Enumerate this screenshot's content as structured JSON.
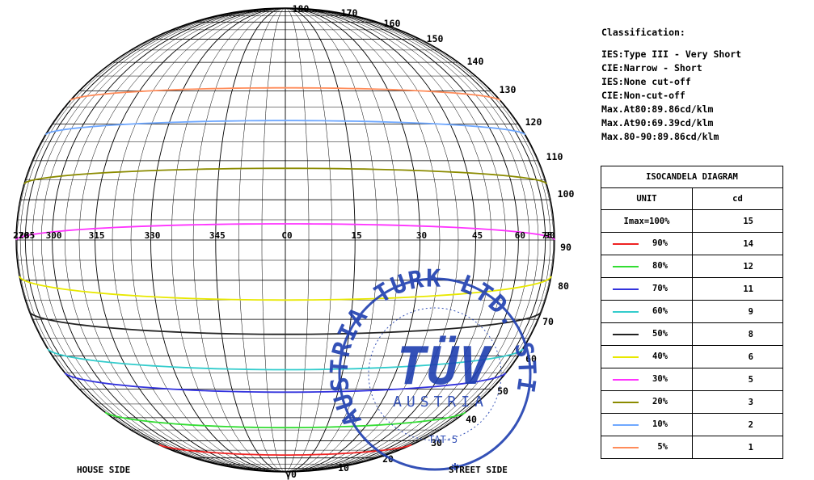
{
  "chart_data": {
    "type": "isocandela",
    "azimuth_labels": [
      "270",
      "285",
      "300",
      "315",
      "330",
      "345",
      "C0",
      "15",
      "30",
      "45",
      "60",
      "75",
      "90"
    ],
    "polar_labels": [
      "180",
      "170",
      "160",
      "150",
      "140",
      "130",
      "120",
      "110",
      "100",
      "90",
      "80",
      "70",
      "60",
      "50",
      "40",
      "30",
      "20",
      "10",
      "γ0"
    ],
    "contours": [
      {
        "percent": 5,
        "cd": 1,
        "color": "#ff8c5a"
      },
      {
        "percent": 10,
        "cd": 2,
        "color": "#6fa8ff"
      },
      {
        "percent": 20,
        "cd": 3,
        "color": "#8b8b00"
      },
      {
        "percent": 30,
        "cd": 5,
        "color": "#ff33ff"
      },
      {
        "percent": 40,
        "cd": 6,
        "color": "#e8e800"
      },
      {
        "percent": 50,
        "cd": 8,
        "color": "#222222"
      },
      {
        "percent": 60,
        "cd": 9,
        "color": "#33cccc"
      },
      {
        "percent": 70,
        "cd": 11,
        "color": "#3333dd"
      },
      {
        "percent": 80,
        "cd": 12,
        "color": "#33dd33"
      },
      {
        "percent": 90,
        "cd": 14,
        "color": "#ee2222"
      }
    ],
    "house_side_label": "HOUSE SIDE",
    "street_side_label": "STREET SIDE"
  },
  "classification": {
    "title": "Classification:",
    "lines": [
      "IES:Type III - Very Short",
      "CIE:Narrow - Short",
      "IES:None cut-off",
      "CIE:Non-cut-off",
      "Max.At80:89.86cd/klm",
      "Max.At90:69.39cd/klm",
      "Max.80-90:89.86cd/klm"
    ]
  },
  "table": {
    "title": "ISOCANDELA DIAGRAM",
    "unit_label": "UNIT",
    "unit_value": "cd",
    "imax_label": "Imax=100%",
    "imax_value": "15",
    "rows": [
      {
        "pct": "90%",
        "cd": "14",
        "color": "#ee2222"
      },
      {
        "pct": "80%",
        "cd": "12",
        "color": "#33dd33"
      },
      {
        "pct": "70%",
        "cd": "11",
        "color": "#3333dd"
      },
      {
        "pct": "60%",
        "cd": "9",
        "color": "#33cccc"
      },
      {
        "pct": "50%",
        "cd": "8",
        "color": "#222222"
      },
      {
        "pct": "40%",
        "cd": "6",
        "color": "#e8e800"
      },
      {
        "pct": "30%",
        "cd": "5",
        "color": "#ff33ff"
      },
      {
        "pct": "20%",
        "cd": "3",
        "color": "#8b8b00"
      },
      {
        "pct": "10%",
        "cd": "2",
        "color": "#6fa8ff"
      },
      {
        "pct": "5%",
        "cd": "1",
        "color": "#ff8c5a"
      }
    ]
  },
  "stamp": {
    "outer_text": "AUSTRIA TURK LTD. STI.",
    "tuv_text": "TÜV",
    "austria_text": "AUSTRIA",
    "code_text": "TAT-5",
    "color": "#1f3fb0"
  }
}
